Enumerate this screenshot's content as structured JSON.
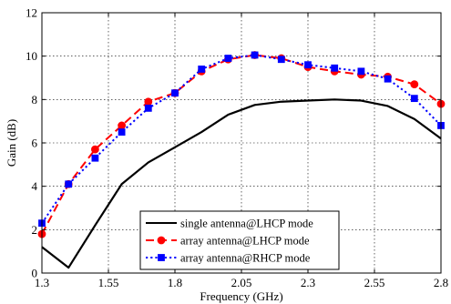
{
  "chart_data": {
    "type": "line",
    "xlabel": "Frequency (GHz)",
    "ylabel": "Gain (dB)",
    "xlim": [
      1.3,
      2.8
    ],
    "ylim": [
      0,
      12
    ],
    "xticks": [
      "1.3",
      "1.55",
      "1.8",
      "2.05",
      "2.3",
      "2.55",
      "2.8"
    ],
    "yticks": [
      "0",
      "2",
      "4",
      "6",
      "8",
      "10",
      "12"
    ],
    "grid": true,
    "legend_position": "bottom-center",
    "series": [
      {
        "name": "single antenna@LHCP mode",
        "style": "solid",
        "color": "#000000",
        "marker": "none",
        "x": [
          1.3,
          1.4,
          1.5,
          1.6,
          1.7,
          1.8,
          1.9,
          2.0,
          2.1,
          2.2,
          2.3,
          2.4,
          2.5,
          2.6,
          2.7,
          2.8
        ],
        "y": [
          1.2,
          0.25,
          2.2,
          4.1,
          5.1,
          5.8,
          6.5,
          7.3,
          7.75,
          7.9,
          7.95,
          8.0,
          7.95,
          7.7,
          7.1,
          6.2
        ]
      },
      {
        "name": "array antenna@LHCP mode",
        "style": "dashed",
        "color": "#ff0000",
        "marker": "circle",
        "x": [
          1.3,
          1.4,
          1.5,
          1.6,
          1.7,
          1.8,
          1.9,
          2.0,
          2.1,
          2.2,
          2.3,
          2.4,
          2.5,
          2.6,
          2.7,
          2.8
        ],
        "y": [
          1.8,
          4.1,
          5.7,
          6.8,
          7.9,
          8.3,
          9.3,
          9.85,
          10.05,
          9.9,
          9.5,
          9.3,
          9.15,
          9.05,
          8.7,
          7.8
        ]
      },
      {
        "name": "array antenna@RHCP mode",
        "style": "dotted",
        "color": "#0000ff",
        "marker": "square",
        "x": [
          1.3,
          1.4,
          1.5,
          1.6,
          1.7,
          1.8,
          1.9,
          2.0,
          2.1,
          2.2,
          2.3,
          2.4,
          2.5,
          2.6,
          2.7,
          2.8
        ],
        "y": [
          2.3,
          4.1,
          5.3,
          6.5,
          7.6,
          8.3,
          9.4,
          9.9,
          10.05,
          9.85,
          9.6,
          9.45,
          9.3,
          8.95,
          8.05,
          6.8
        ]
      }
    ]
  }
}
